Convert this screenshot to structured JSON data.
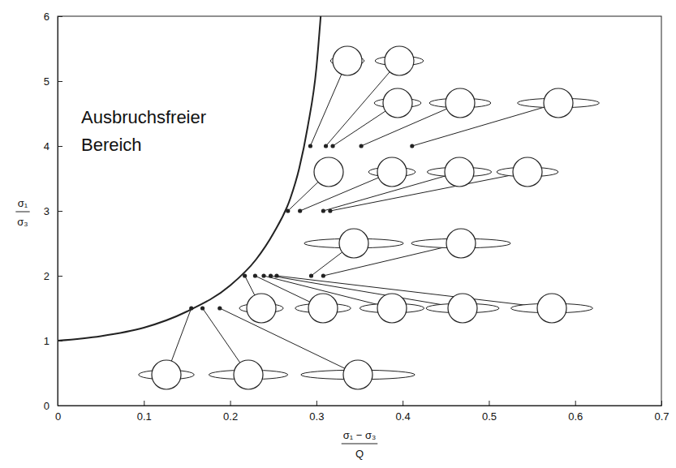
{
  "chart_data": {
    "type": "scatter",
    "x_label": {
      "numerator": "σ₁ − σ₃",
      "denominator": "Q"
    },
    "y_label": {
      "numerator": "σ₁",
      "denominator": "σ₃"
    },
    "annotation": "Ausbruchsfreier Bereich",
    "xlim": [
      0,
      0.7
    ],
    "xticks": [
      0,
      0.1,
      0.2,
      0.3,
      0.4,
      0.5,
      0.6,
      0.7
    ],
    "ylim": [
      0,
      6
    ],
    "yticks": [
      0,
      1,
      2,
      3,
      4,
      5,
      6
    ],
    "series": [
      {
        "type": "line",
        "color": "#222222",
        "x": [
          0,
          0.05,
          0.1,
          0.15,
          0.2,
          0.23,
          0.25,
          0.27,
          0.28,
          0.29,
          0.3,
          0.305
        ],
        "values": [
          1,
          1.07,
          1.2,
          1.45,
          1.85,
          2.25,
          2.65,
          3.2,
          3.65,
          4.3,
          5.2,
          6
        ]
      },
      {
        "type": "scatter",
        "color": "#222222",
        "marker": "circle",
        "x": [
          0.293,
          0.311,
          0.319,
          0.352,
          0.411,
          0.267,
          0.281,
          0.308,
          0.316,
          0.217,
          0.229,
          0.239,
          0.247,
          0.254,
          0.294,
          0.308,
          0.155,
          0.168,
          0.188
        ],
        "values": [
          4,
          4,
          4,
          4,
          4,
          3,
          3,
          3,
          3,
          2,
          2,
          2,
          2,
          2,
          2,
          2,
          1.5,
          1.5,
          1.5
        ],
        "breakout": [
          1.15,
          1.65,
          1.6,
          2.1,
          2.8,
          1.0,
          1.6,
          2.2,
          2.1,
          1.5,
          1.9,
          2.2,
          2.5,
          2.8,
          3.4,
          3.4,
          1.9,
          2.7,
          3.9
        ]
      }
    ]
  }
}
